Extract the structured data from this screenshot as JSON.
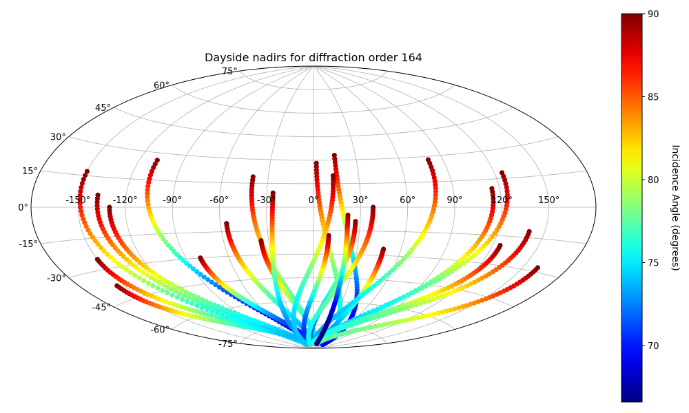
{
  "chart_data": {
    "type": "scatter",
    "projection": "aitoff",
    "title": "Dayside nadirs for diffraction order 164",
    "xlabel": "",
    "ylabel": "",
    "x_unit": "longitude degrees",
    "y_unit": "latitude degrees",
    "grid": true,
    "longitude_ticks": [
      -150,
      -120,
      -90,
      -60,
      -30,
      0,
      30,
      60,
      90,
      120,
      150
    ],
    "longitude_tick_labels": [
      "-150°",
      "-120°",
      "-90°",
      "-60°",
      "-30°",
      "0°",
      "30°",
      "60°",
      "90°",
      "120°",
      "150°"
    ],
    "latitude_ticks": [
      -75,
      -60,
      -45,
      -30,
      -15,
      0,
      15,
      30,
      45,
      60,
      75
    ],
    "latitude_tick_labels": [
      "-75°",
      "-60°",
      "-45°",
      "-30°",
      "-15°",
      "0°",
      "15°",
      "30°",
      "45°",
      "60°",
      "75°"
    ],
    "colormap": "jet",
    "colorbar": {
      "label": "Incidence Angle (degrees)",
      "range": [
        66.6,
        90
      ],
      "ticks": [
        70,
        75,
        80,
        85,
        90
      ],
      "tick_labels": [
        "70",
        "75",
        "80",
        "85",
        "90"
      ],
      "placement": "right"
    },
    "series": [
      {
        "start": [
          -150,
          17
        ],
        "end": [
          -60,
          -87
        ],
        "min_angle": 74.5
      },
      {
        "start": [
          -138,
          6
        ],
        "end": [
          -50,
          -87
        ],
        "min_angle": 74.5
      },
      {
        "start": [
          -130,
          0
        ],
        "end": [
          -40,
          -87
        ],
        "min_angle": 74.5
      },
      {
        "start": [
          -108,
          26
        ],
        "end": [
          -20,
          -87
        ],
        "min_angle": 68.5
      },
      {
        "start": [
          -150,
          -25
        ],
        "end": [
          -30,
          -87
        ],
        "min_angle": 73.5
      },
      {
        "start": [
          -155,
          -38
        ],
        "end": [
          -20,
          -87
        ],
        "min_angle": 73.5
      },
      {
        "start": [
          -80,
          -30
        ],
        "end": [
          -5,
          -87
        ],
        "min_angle": 69.5
      },
      {
        "start": [
          -56,
          -10
        ],
        "end": [
          0,
          -87
        ],
        "min_angle": 73.5
      },
      {
        "start": [
          -40,
          19
        ],
        "end": [
          10,
          -87
        ],
        "min_angle": 75.5
      },
      {
        "start": [
          -35,
          -21
        ],
        "end": [
          20,
          -87
        ],
        "min_angle": 75.0
      },
      {
        "start": [
          -26,
          9
        ],
        "end": [
          -50,
          -87
        ],
        "min_angle": 72.5
      },
      {
        "start": [
          2,
          28
        ],
        "end": [
          60,
          -87
        ],
        "min_angle": 74.5
      },
      {
        "start": [
          15,
          33
        ],
        "end": [
          80,
          -87
        ],
        "min_angle": 69.0
      },
      {
        "start": [
          10,
          -18
        ],
        "end": [
          -40,
          -87
        ],
        "min_angle": 70.5
      },
      {
        "start": [
          13,
          20
        ],
        "end": [
          -60,
          -87
        ],
        "min_angle": 74.0
      },
      {
        "start": [
          27,
          -9
        ],
        "end": [
          -20,
          -87
        ],
        "min_angle": 71.5
      },
      {
        "start": [
          38,
          0
        ],
        "end": [
          -30,
          -87
        ],
        "min_angle": 75.5
      },
      {
        "start": [
          48,
          -26
        ],
        "end": [
          30,
          -87
        ],
        "min_angle": 72.5
      },
      {
        "start": [
          80,
          28
        ],
        "end": [
          -5,
          -87
        ],
        "min_angle": 73.5
      },
      {
        "start": [
          115,
          10
        ],
        "end": [
          20,
          -87
        ],
        "min_angle": 73.5
      },
      {
        "start": [
          125,
          18
        ],
        "end": [
          10,
          -87
        ],
        "min_angle": 74.0
      },
      {
        "start": [
          125,
          -20
        ],
        "end": [
          -10,
          -87
        ],
        "min_angle": 75.5
      },
      {
        "start": [
          140,
          -12
        ],
        "end": [
          0,
          -87
        ],
        "min_angle": 76.0
      },
      {
        "start": [
          160,
          -28
        ],
        "end": [
          20,
          -87
        ],
        "min_angle": 77.5
      },
      {
        "start": [
          22,
          -5
        ],
        "end": [
          25,
          -87
        ],
        "min_angle": 66.6
      }
    ]
  }
}
